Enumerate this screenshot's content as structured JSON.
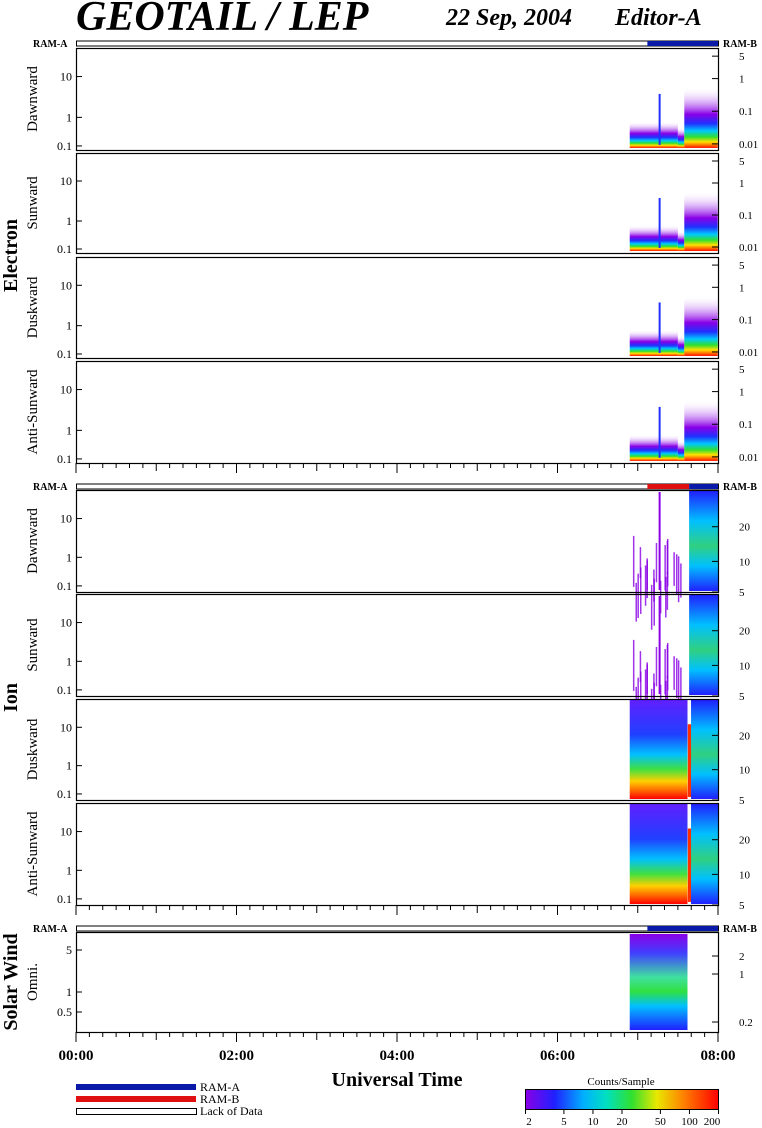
{
  "header": {
    "instrument": "GEOTAIL / LEP",
    "date": "22 Sep, 2004",
    "editor": "Editor-A"
  },
  "legend_colors": {
    "ram_a": "#0a1aa8",
    "ram_b": "#e01010",
    "lack": "#ffffff"
  },
  "groups": [
    {
      "label": "Electron",
      "mode_left": "RAM-A",
      "mode_right": "RAM-B",
      "mode_bar": [
        {
          "from": 0.0,
          "to": 0.89,
          "mode": "lack"
        },
        {
          "from": 0.89,
          "to": 1.0,
          "mode": "ram_a"
        }
      ],
      "panels": [
        {
          "name": "Dawnward",
          "left_ticks": [
            "10",
            "1",
            "0.1"
          ],
          "right_ticks": [
            "5",
            "1",
            "0.1",
            "0.01"
          ]
        },
        {
          "name": "Sunward",
          "left_ticks": [
            "10",
            "1",
            "0.1"
          ],
          "right_ticks": [
            "5",
            "1",
            "0.1",
            "0.01"
          ]
        },
        {
          "name": "Duskward",
          "left_ticks": [
            "10",
            "1",
            "0.1"
          ],
          "right_ticks": [
            "5",
            "1",
            "0.1",
            "0.01"
          ]
        },
        {
          "name": "Anti-Sunward",
          "left_ticks": [
            "10",
            "1",
            "0.1"
          ],
          "right_ticks": [
            "5",
            "1",
            "0.1",
            "0.01"
          ]
        }
      ]
    },
    {
      "label": "Ion",
      "mode_left": "RAM-A",
      "mode_right": "RAM-B",
      "mode_bar": [
        {
          "from": 0.0,
          "to": 0.89,
          "mode": "lack"
        },
        {
          "from": 0.89,
          "to": 0.955,
          "mode": "ram_b"
        },
        {
          "from": 0.955,
          "to": 1.0,
          "mode": "ram_a"
        }
      ],
      "panels": [
        {
          "name": "Dawnward",
          "left_ticks": [
            "10",
            "1",
            "0.1"
          ],
          "right_ticks": [
            "20",
            "10",
            "5"
          ]
        },
        {
          "name": "Sunward",
          "left_ticks": [
            "10",
            "1",
            "0.1"
          ],
          "right_ticks": [
            "20",
            "10",
            "5"
          ]
        },
        {
          "name": "Duskward",
          "left_ticks": [
            "10",
            "1",
            "0.1"
          ],
          "right_ticks": [
            "20",
            "10",
            "5"
          ]
        },
        {
          "name": "Anti-Sunward",
          "left_ticks": [
            "10",
            "1",
            "0.1"
          ],
          "right_ticks": [
            "20",
            "10",
            "5"
          ]
        }
      ]
    },
    {
      "label": "Solar Wind",
      "mode_left": "RAM-A",
      "mode_right": "RAM-B",
      "mode_bar": [
        {
          "from": 0.0,
          "to": 0.89,
          "mode": "lack"
        },
        {
          "from": 0.89,
          "to": 1.0,
          "mode": "ram_a"
        }
      ],
      "panels": [
        {
          "name": "Omni.",
          "left_ticks": [
            "5",
            "1",
            "0.5"
          ],
          "right_ticks": [
            "2",
            "1",
            "0.2"
          ]
        }
      ]
    }
  ],
  "x_axis": {
    "ticks": [
      "00:00",
      "02:00",
      "04:00",
      "06:00",
      "08:00"
    ],
    "label": "Universal Time"
  },
  "legend": {
    "items": [
      "RAM-A",
      "RAM-B",
      "Lack of Data"
    ]
  },
  "colorbar": {
    "title": "Counts/Sample",
    "ticks": [
      "2",
      "5",
      "10",
      "20",
      "50",
      "100",
      "200"
    ]
  },
  "chart_data": {
    "type": "heatmap",
    "x_range": [
      "00:00",
      "08:00"
    ],
    "data_start": "06:54",
    "data_end": "08:00",
    "color_scale": {
      "label": "Counts/Sample",
      "min": 2,
      "max": 200,
      "log": true
    }
  }
}
